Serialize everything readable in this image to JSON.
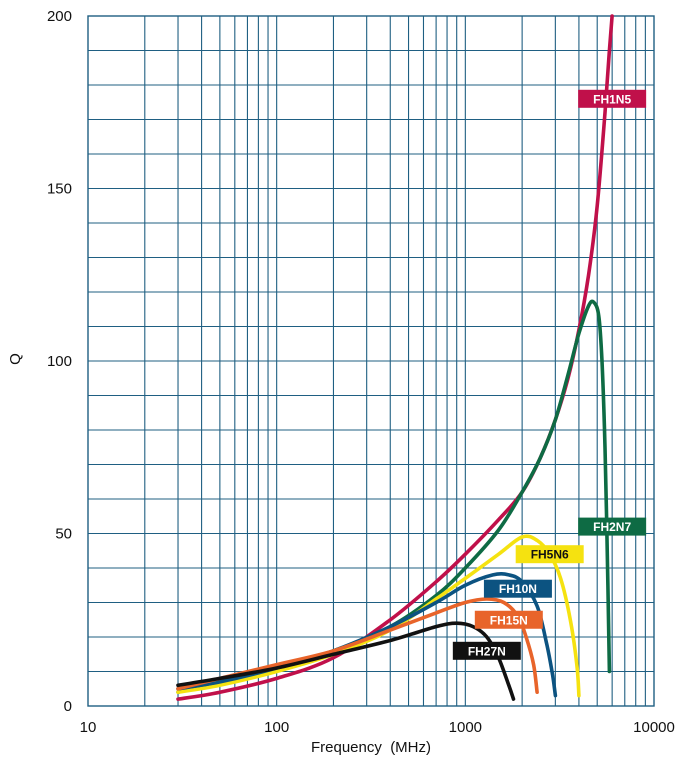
{
  "chart_data": {
    "type": "line",
    "xscale": "log",
    "xlim": [
      10,
      10000
    ],
    "ylim": [
      0,
      200
    ],
    "xlabel": "Frequency  (MHz)",
    "ylabel": "Q",
    "grid": true,
    "x_ticks": [
      "10",
      "100",
      "1000",
      "10000"
    ],
    "y_ticks": [
      "0",
      "50",
      "100",
      "150",
      "200"
    ],
    "series": [
      {
        "name": "FH1N5",
        "color": "#c0104a",
        "label_text_color": "#ffffff",
        "label_at": [
          6000,
          176
        ],
        "points": [
          [
            30,
            2
          ],
          [
            50,
            4
          ],
          [
            100,
            8
          ],
          [
            200,
            14
          ],
          [
            400,
            25
          ],
          [
            700,
            36
          ],
          [
            1000,
            44
          ],
          [
            1500,
            54
          ],
          [
            2000,
            62
          ],
          [
            2500,
            72
          ],
          [
            3000,
            83
          ],
          [
            3500,
            95
          ],
          [
            4000,
            109
          ],
          [
            4500,
            125
          ],
          [
            5000,
            145
          ],
          [
            5500,
            172
          ],
          [
            5800,
            190
          ],
          [
            6000,
            200
          ]
        ]
      },
      {
        "name": "FH2N7",
        "color": "#0e6b44",
        "label_text_color": "#ffffff",
        "label_at": [
          6000,
          52
        ],
        "points": [
          [
            30,
            4
          ],
          [
            50,
            7
          ],
          [
            100,
            11
          ],
          [
            200,
            16
          ],
          [
            400,
            23
          ],
          [
            700,
            32
          ],
          [
            1000,
            40
          ],
          [
            1500,
            51
          ],
          [
            2000,
            62
          ],
          [
            2500,
            72
          ],
          [
            3000,
            83
          ],
          [
            3500,
            96
          ],
          [
            4000,
            108
          ],
          [
            4500,
            116
          ],
          [
            4800,
            117
          ],
          [
            5100,
            113
          ],
          [
            5300,
            100
          ],
          [
            5500,
            75
          ],
          [
            5700,
            35
          ],
          [
            5800,
            10
          ]
        ]
      },
      {
        "name": "FH5N6",
        "color": "#f5e210",
        "label_text_color": "#111111",
        "label_at": [
          2800,
          44
        ],
        "points": [
          [
            30,
            4
          ],
          [
            50,
            6
          ],
          [
            100,
            10
          ],
          [
            200,
            15
          ],
          [
            400,
            22
          ],
          [
            700,
            31
          ],
          [
            1000,
            37
          ],
          [
            1500,
            44
          ],
          [
            2000,
            49
          ],
          [
            2400,
            48
          ],
          [
            2800,
            44
          ],
          [
            3200,
            37
          ],
          [
            3600,
            25
          ],
          [
            3900,
            12
          ],
          [
            4000,
            3
          ]
        ]
      },
      {
        "name": "FH10N",
        "color": "#0c5381",
        "label_text_color": "#ffffff",
        "label_at": [
          1900,
          34
        ],
        "points": [
          [
            30,
            5
          ],
          [
            50,
            7
          ],
          [
            100,
            11
          ],
          [
            200,
            16
          ],
          [
            400,
            23
          ],
          [
            700,
            30
          ],
          [
            1000,
            35
          ],
          [
            1400,
            38
          ],
          [
            1700,
            38
          ],
          [
            2000,
            36
          ],
          [
            2400,
            29
          ],
          [
            2700,
            18
          ],
          [
            2900,
            9
          ],
          [
            3000,
            3
          ]
        ]
      },
      {
        "name": "FH15N",
        "color": "#e8642a",
        "label_text_color": "#ffffff",
        "label_at": [
          1700,
          25
        ],
        "points": [
          [
            30,
            5
          ],
          [
            50,
            8
          ],
          [
            100,
            12
          ],
          [
            200,
            16
          ],
          [
            400,
            22
          ],
          [
            700,
            27
          ],
          [
            1000,
            30
          ],
          [
            1300,
            31
          ],
          [
            1600,
            30
          ],
          [
            1900,
            26
          ],
          [
            2100,
            20
          ],
          [
            2300,
            12
          ],
          [
            2400,
            4
          ]
        ]
      },
      {
        "name": "FH27N",
        "color": "#111111",
        "label_text_color": "#ffffff",
        "label_at": [
          1300,
          16
        ],
        "points": [
          [
            30,
            6
          ],
          [
            50,
            8
          ],
          [
            100,
            11
          ],
          [
            200,
            15
          ],
          [
            400,
            19
          ],
          [
            700,
            23
          ],
          [
            900,
            24
          ],
          [
            1100,
            23
          ],
          [
            1300,
            20
          ],
          [
            1500,
            14
          ],
          [
            1700,
            6
          ],
          [
            1800,
            2
          ]
        ]
      }
    ]
  }
}
